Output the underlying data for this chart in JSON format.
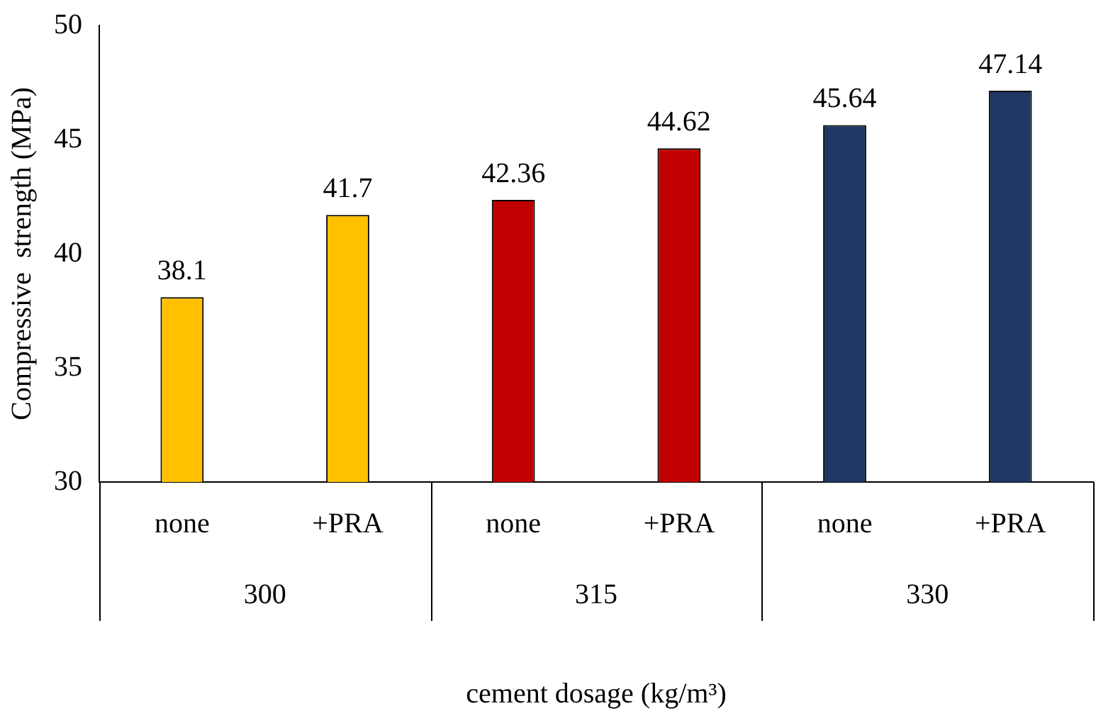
{
  "chart_data": {
    "type": "bar",
    "categories": [
      "none",
      "+PRA",
      "none",
      "+PRA",
      "none",
      "+PRA"
    ],
    "values": [
      38.1,
      41.7,
      42.36,
      44.62,
      45.64,
      47.14
    ],
    "colors": [
      "#ffc000",
      "#ffc000",
      "#c00000",
      "#c00000",
      "#1f3864",
      "#1f3864"
    ],
    "ylim": [
      30,
      50
    ],
    "yticks": [
      30,
      35,
      40,
      45,
      50
    ],
    "xlabel": "cement dosage (kg/m³)",
    "ylabel": "Compressive  strength (MPa)",
    "annotations": [
      "300",
      "315",
      "330"
    ],
    "data_labels": true,
    "grid": false,
    "legend": false
  }
}
